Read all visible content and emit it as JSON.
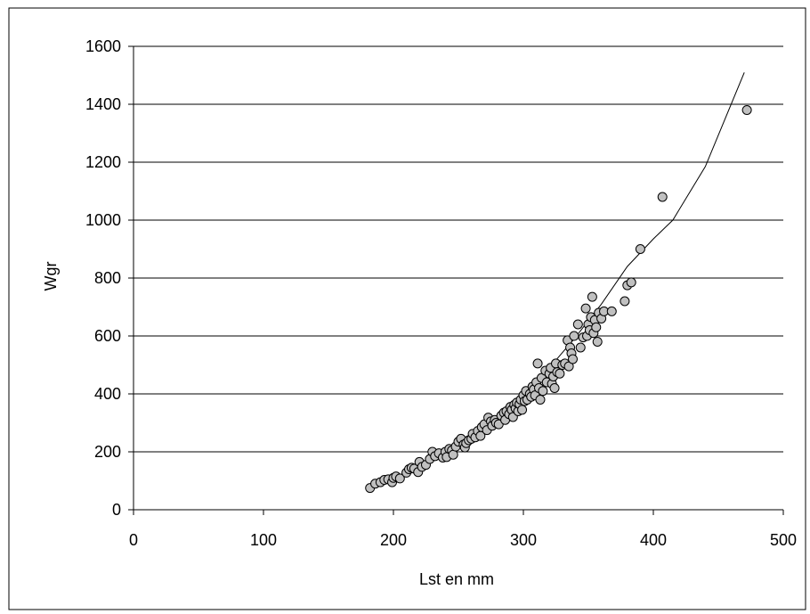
{
  "chart_data": {
    "type": "scatter",
    "title": "",
    "xlabel": "Lst en mm",
    "ylabel": "Wgr",
    "xlim": [
      0,
      500
    ],
    "ylim": [
      0,
      1600
    ],
    "x_ticks": [
      0,
      100,
      200,
      300,
      400,
      500
    ],
    "y_ticks": [
      0,
      200,
      400,
      600,
      800,
      1000,
      1200,
      1400,
      1600
    ],
    "x_tick_labels": [
      "0",
      "100",
      "200",
      "300",
      "400",
      "500"
    ],
    "y_tick_labels": [
      "0",
      "200",
      "400",
      "600",
      "800",
      "1000",
      "1200",
      "1400",
      "1600"
    ],
    "grid": "horizontal",
    "legend": "none",
    "colors": {
      "marker_fill": "#c0c0c0",
      "marker_edge": "#000000",
      "fit_line": "#000000",
      "grid": "#000000"
    },
    "series": [
      {
        "kind": "points",
        "points": [
          [
            182,
            75
          ],
          [
            186,
            90
          ],
          [
            190,
            95
          ],
          [
            193,
            103
          ],
          [
            196,
            105
          ],
          [
            199,
            95
          ],
          [
            200,
            110
          ],
          [
            202,
            115
          ],
          [
            205,
            108
          ],
          [
            210,
            128
          ],
          [
            212,
            140
          ],
          [
            214,
            145
          ],
          [
            216,
            142
          ],
          [
            219,
            130
          ],
          [
            220,
            165
          ],
          [
            222,
            148
          ],
          [
            225,
            155
          ],
          [
            228,
            175
          ],
          [
            230,
            200
          ],
          [
            232,
            185
          ],
          [
            235,
            195
          ],
          [
            238,
            180
          ],
          [
            240,
            200
          ],
          [
            241,
            182
          ],
          [
            243,
            210
          ],
          [
            245,
            205
          ],
          [
            246,
            190
          ],
          [
            248,
            218
          ],
          [
            250,
            235
          ],
          [
            252,
            245
          ],
          [
            254,
            225
          ],
          [
            255,
            215
          ],
          [
            256,
            230
          ],
          [
            258,
            240
          ],
          [
            260,
            245
          ],
          [
            261,
            262
          ],
          [
            263,
            250
          ],
          [
            265,
            272
          ],
          [
            267,
            255
          ],
          [
            268,
            285
          ],
          [
            270,
            295
          ],
          [
            272,
            275
          ],
          [
            273,
            318
          ],
          [
            275,
            305
          ],
          [
            276,
            290
          ],
          [
            278,
            310
          ],
          [
            279,
            300
          ],
          [
            281,
            295
          ],
          [
            283,
            325
          ],
          [
            285,
            335
          ],
          [
            286,
            310
          ],
          [
            287,
            340
          ],
          [
            289,
            330
          ],
          [
            290,
            355
          ],
          [
            291,
            345
          ],
          [
            292,
            320
          ],
          [
            293,
            362
          ],
          [
            294,
            350
          ],
          [
            295,
            370
          ],
          [
            296,
            340
          ],
          [
            297,
            365
          ],
          [
            298,
            380
          ],
          [
            299,
            345
          ],
          [
            300,
            395
          ],
          [
            301,
            375
          ],
          [
            302,
            410
          ],
          [
            303,
            380
          ],
          [
            305,
            400
          ],
          [
            306,
            390
          ],
          [
            307,
            425
          ],
          [
            308,
            415
          ],
          [
            309,
            395
          ],
          [
            310,
            440
          ],
          [
            311,
            505
          ],
          [
            312,
            420
          ],
          [
            313,
            380
          ],
          [
            314,
            455
          ],
          [
            315,
            410
          ],
          [
            317,
            480
          ],
          [
            318,
            440
          ],
          [
            320,
            470
          ],
          [
            321,
            490
          ],
          [
            322,
            435
          ],
          [
            323,
            460
          ],
          [
            324,
            420
          ],
          [
            325,
            505
          ],
          [
            326,
            475
          ],
          [
            328,
            470
          ],
          [
            330,
            500
          ],
          [
            332,
            505
          ],
          [
            334,
            585
          ],
          [
            335,
            495
          ],
          [
            336,
            560
          ],
          [
            337,
            540
          ],
          [
            338,
            520
          ],
          [
            339,
            600
          ],
          [
            342,
            640
          ],
          [
            344,
            560
          ],
          [
            346,
            595
          ],
          [
            348,
            695
          ],
          [
            349,
            600
          ],
          [
            350,
            640
          ],
          [
            351,
            620
          ],
          [
            352,
            665
          ],
          [
            353,
            735
          ],
          [
            354,
            610
          ],
          [
            355,
            655
          ],
          [
            356,
            630
          ],
          [
            357,
            580
          ],
          [
            358,
            680
          ],
          [
            360,
            660
          ],
          [
            362,
            685
          ],
          [
            368,
            685
          ],
          [
            378,
            720
          ],
          [
            380,
            775
          ],
          [
            383,
            785
          ],
          [
            390,
            900
          ],
          [
            407,
            1080
          ],
          [
            472,
            1380
          ]
        ]
      },
      {
        "kind": "fit_line",
        "points": [
          [
            182,
            78
          ],
          [
            200,
            110
          ],
          [
            220,
            150
          ],
          [
            240,
            198
          ],
          [
            260,
            255
          ],
          [
            280,
            322
          ],
          [
            300,
            400
          ],
          [
            320,
            490
          ],
          [
            340,
            595
          ],
          [
            360,
            710
          ],
          [
            380,
            840
          ],
          [
            400,
            935
          ],
          [
            415,
            1000
          ],
          [
            440,
            1185
          ],
          [
            470,
            1510
          ]
        ]
      }
    ]
  }
}
